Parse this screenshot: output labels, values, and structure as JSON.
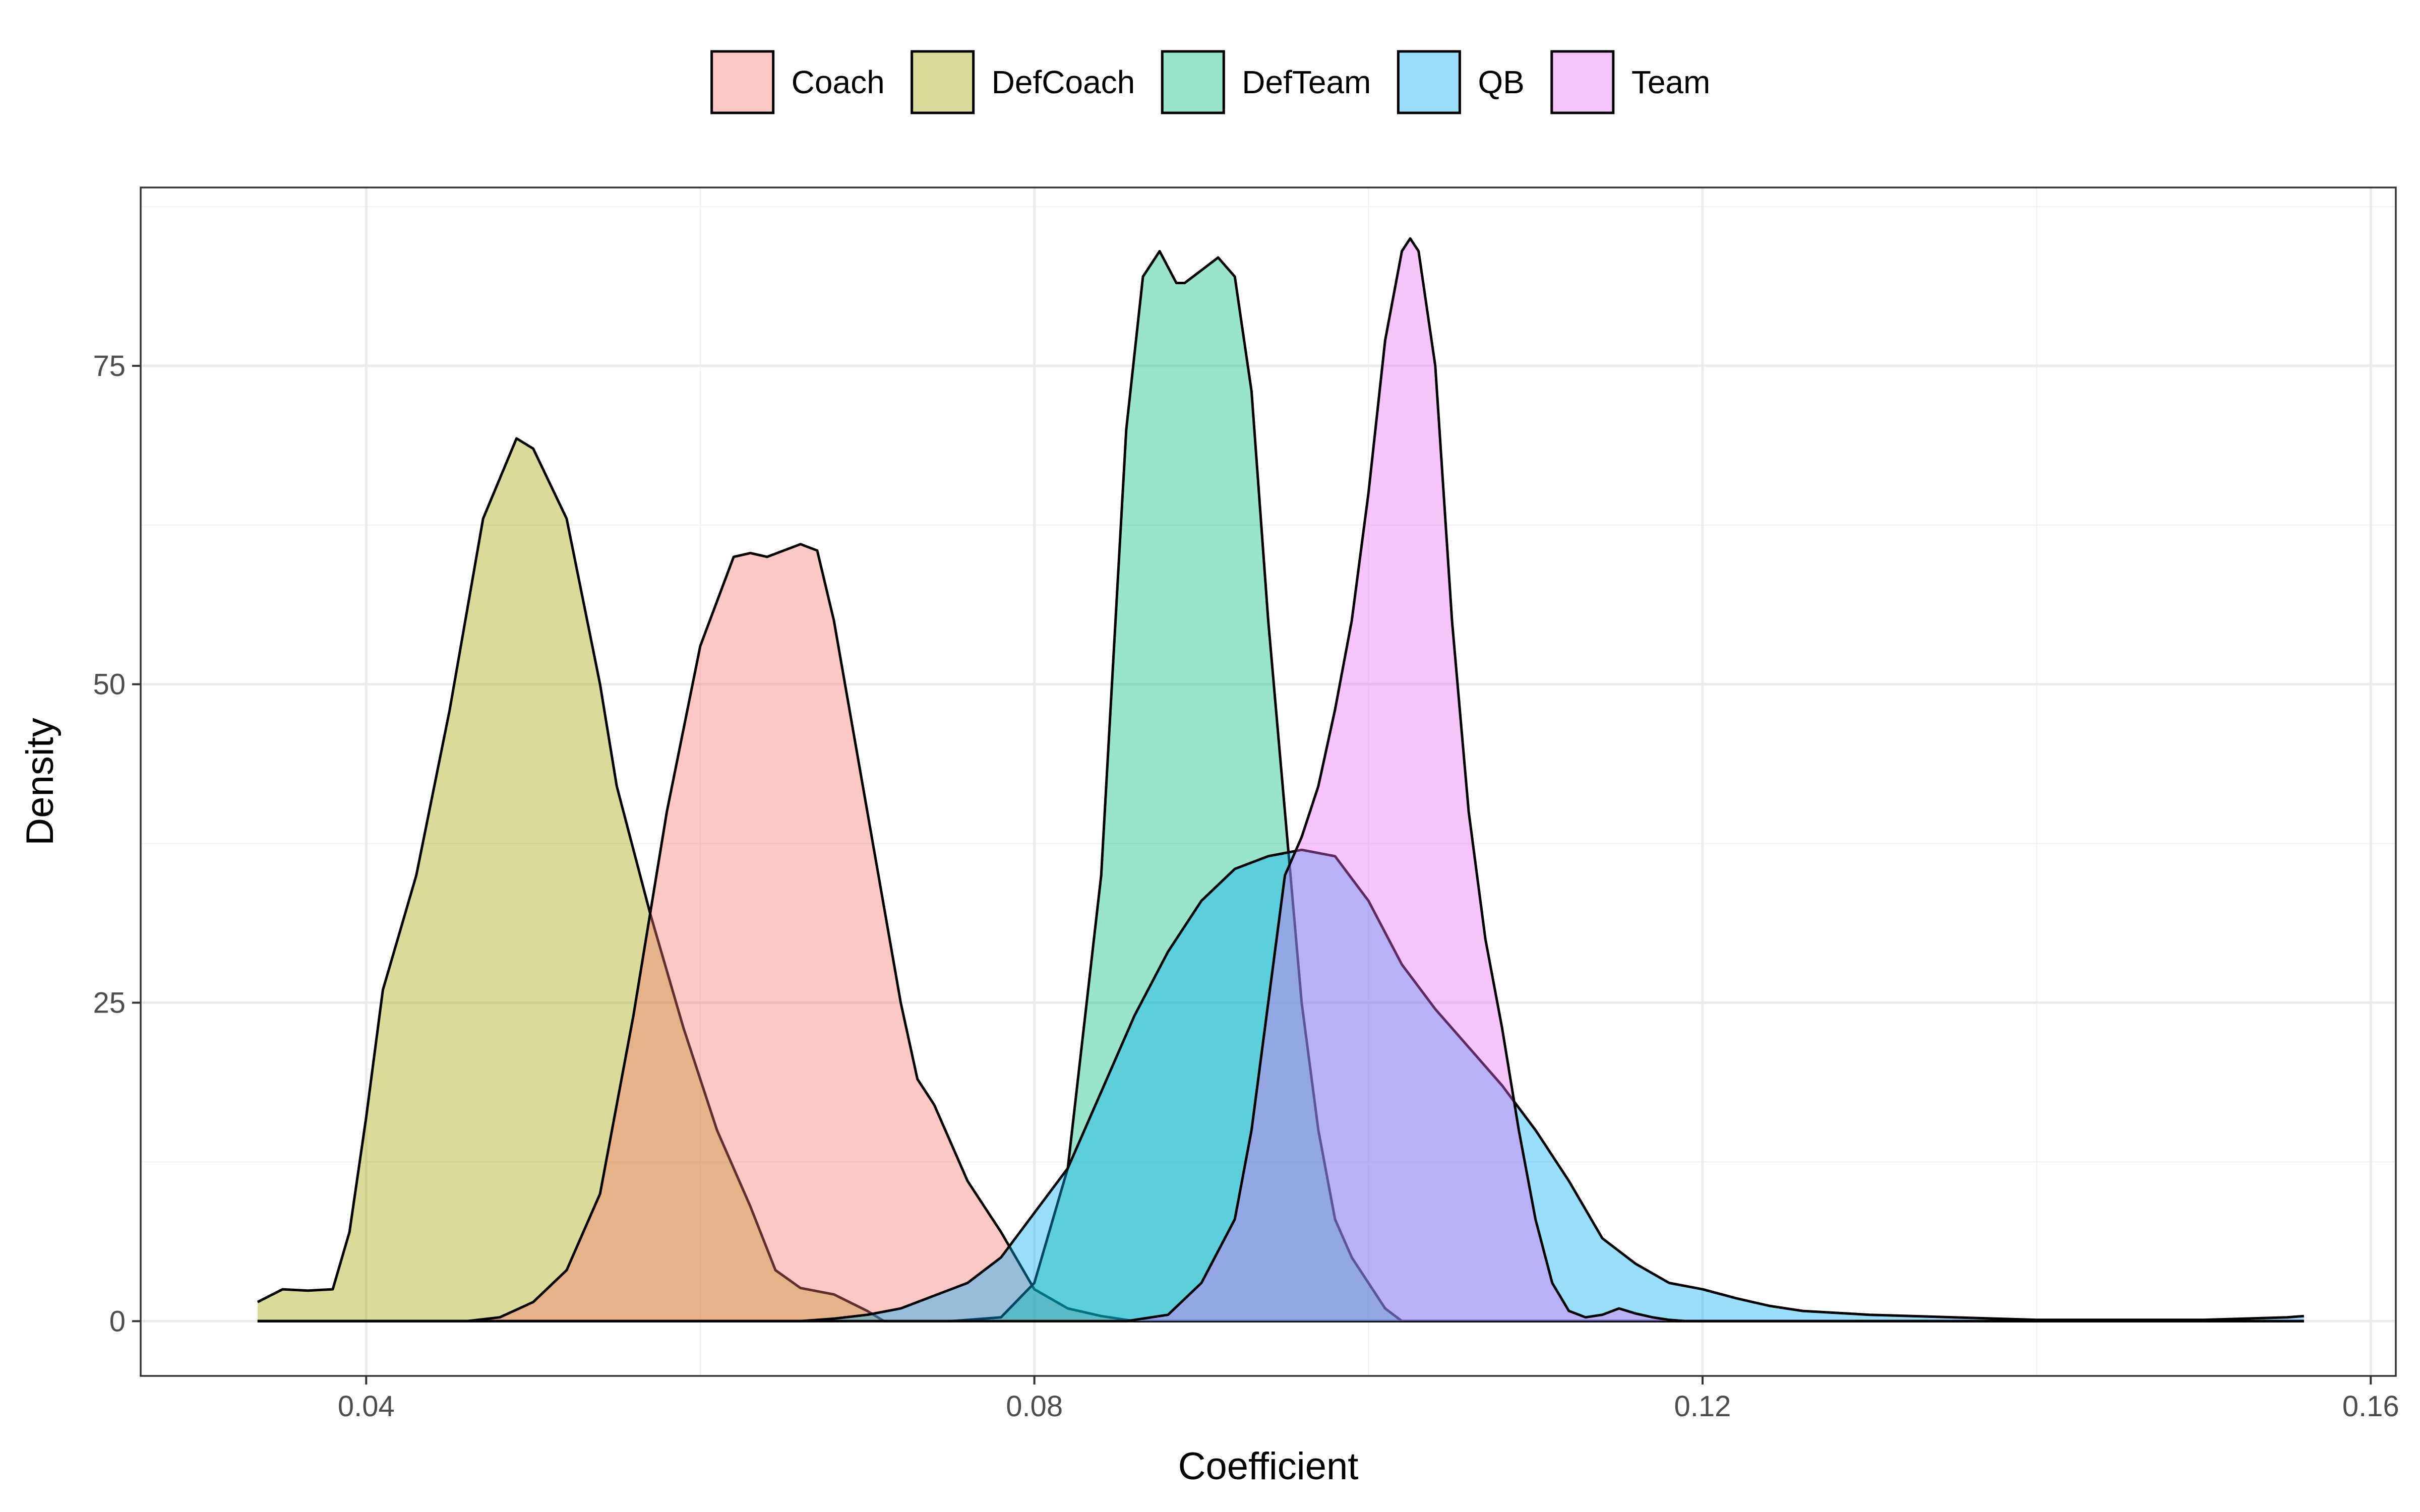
{
  "chart_data": {
    "type": "area",
    "title": "",
    "xlabel": "Coefficient",
    "ylabel": "Density",
    "xlim": [
      0.0265,
      0.1615
    ],
    "ylim": [
      -4.3,
      89
    ],
    "x_ticks": [
      0.04,
      0.08,
      0.12,
      0.16
    ],
    "x_tick_labels": [
      "0.04",
      "0.08",
      "0.12",
      "0.16"
    ],
    "y_ticks": [
      0,
      25,
      50,
      75
    ],
    "y_tick_labels": [
      "0",
      "25",
      "50",
      "75"
    ],
    "grid": true,
    "legend_position": "top",
    "fill_opacity": 0.4,
    "series": [
      {
        "name": "DefCoach",
        "color": "#A3A500",
        "points": [
          [
            0.0335,
            1.5
          ],
          [
            0.035,
            2.5
          ],
          [
            0.0365,
            2.4
          ],
          [
            0.038,
            2.5
          ],
          [
            0.039,
            7
          ],
          [
            0.04,
            16
          ],
          [
            0.041,
            26
          ],
          [
            0.043,
            35
          ],
          [
            0.045,
            48
          ],
          [
            0.047,
            63
          ],
          [
            0.049,
            69.3
          ],
          [
            0.05,
            68.5
          ],
          [
            0.052,
            63
          ],
          [
            0.054,
            50
          ],
          [
            0.055,
            42
          ],
          [
            0.057,
            32
          ],
          [
            0.059,
            23
          ],
          [
            0.061,
            15
          ],
          [
            0.063,
            9
          ],
          [
            0.0645,
            4
          ],
          [
            0.066,
            2.6
          ],
          [
            0.068,
            2.1
          ],
          [
            0.07,
            0.8
          ],
          [
            0.071,
            0
          ],
          [
            0.156,
            0
          ]
        ]
      },
      {
        "name": "Coach",
        "color": "#F8766D",
        "points": [
          [
            0.0335,
            0
          ],
          [
            0.046,
            0
          ],
          [
            0.048,
            0.3
          ],
          [
            0.05,
            1.5
          ],
          [
            0.052,
            4
          ],
          [
            0.054,
            10
          ],
          [
            0.056,
            24
          ],
          [
            0.058,
            40
          ],
          [
            0.06,
            53
          ],
          [
            0.062,
            60
          ],
          [
            0.063,
            60.3
          ],
          [
            0.064,
            60
          ],
          [
            0.065,
            60.5
          ],
          [
            0.066,
            61
          ],
          [
            0.067,
            60.5
          ],
          [
            0.068,
            55
          ],
          [
            0.07,
            40
          ],
          [
            0.072,
            25
          ],
          [
            0.073,
            19
          ],
          [
            0.074,
            17
          ],
          [
            0.075,
            14
          ],
          [
            0.076,
            11
          ],
          [
            0.078,
            7
          ],
          [
            0.08,
            2.5
          ],
          [
            0.082,
            1.0
          ],
          [
            0.084,
            0.4
          ],
          [
            0.086,
            0
          ],
          [
            0.156,
            0
          ]
        ]
      },
      {
        "name": "DefTeam",
        "color": "#00BF7D",
        "points": [
          [
            0.0335,
            0
          ],
          [
            0.071,
            0
          ],
          [
            0.075,
            0
          ],
          [
            0.078,
            0.3
          ],
          [
            0.08,
            3
          ],
          [
            0.082,
            12
          ],
          [
            0.084,
            35
          ],
          [
            0.0855,
            70
          ],
          [
            0.0865,
            82
          ],
          [
            0.0875,
            84
          ],
          [
            0.0885,
            81.5
          ],
          [
            0.089,
            81.5
          ],
          [
            0.0905,
            83
          ],
          [
            0.091,
            83.5
          ],
          [
            0.092,
            82
          ],
          [
            0.093,
            73
          ],
          [
            0.094,
            55
          ],
          [
            0.095,
            40
          ],
          [
            0.096,
            25
          ],
          [
            0.097,
            15
          ],
          [
            0.098,
            8
          ],
          [
            0.099,
            5
          ],
          [
            0.1,
            3
          ],
          [
            0.101,
            1
          ],
          [
            0.102,
            0
          ],
          [
            0.156,
            0
          ]
        ]
      },
      {
        "name": "QB",
        "color": "#00B0F6",
        "points": [
          [
            0.0335,
            0
          ],
          [
            0.066,
            0
          ],
          [
            0.068,
            0.2
          ],
          [
            0.07,
            0.5
          ],
          [
            0.072,
            1
          ],
          [
            0.074,
            2
          ],
          [
            0.076,
            3
          ],
          [
            0.078,
            5
          ],
          [
            0.08,
            8.5
          ],
          [
            0.082,
            12
          ],
          [
            0.084,
            18
          ],
          [
            0.086,
            24
          ],
          [
            0.088,
            29
          ],
          [
            0.09,
            33
          ],
          [
            0.092,
            35.5
          ],
          [
            0.094,
            36.5
          ],
          [
            0.096,
            37
          ],
          [
            0.098,
            36.5
          ],
          [
            0.1,
            33
          ],
          [
            0.102,
            28
          ],
          [
            0.104,
            24.5
          ],
          [
            0.106,
            21.5
          ],
          [
            0.108,
            18.5
          ],
          [
            0.11,
            15
          ],
          [
            0.112,
            11
          ],
          [
            0.114,
            6.5
          ],
          [
            0.116,
            4.5
          ],
          [
            0.118,
            3
          ],
          [
            0.12,
            2.5
          ],
          [
            0.122,
            1.8
          ],
          [
            0.124,
            1.2
          ],
          [
            0.126,
            0.8
          ],
          [
            0.13,
            0.5
          ],
          [
            0.135,
            0.3
          ],
          [
            0.14,
            0.1
          ],
          [
            0.145,
            0.1
          ],
          [
            0.15,
            0.1
          ],
          [
            0.155,
            0.3
          ],
          [
            0.156,
            0.4
          ]
        ]
      },
      {
        "name": "Team",
        "color": "#E76BF3",
        "points": [
          [
            0.0335,
            0
          ],
          [
            0.0855,
            0
          ],
          [
            0.088,
            0.5
          ],
          [
            0.09,
            3
          ],
          [
            0.092,
            8
          ],
          [
            0.093,
            15
          ],
          [
            0.094,
            25
          ],
          [
            0.095,
            35
          ],
          [
            0.096,
            38
          ],
          [
            0.097,
            42
          ],
          [
            0.098,
            48
          ],
          [
            0.099,
            55
          ],
          [
            0.1,
            65
          ],
          [
            0.101,
            77
          ],
          [
            0.102,
            84
          ],
          [
            0.1025,
            85
          ],
          [
            0.103,
            84
          ],
          [
            0.104,
            75
          ],
          [
            0.105,
            55
          ],
          [
            0.106,
            40
          ],
          [
            0.107,
            30
          ],
          [
            0.108,
            23
          ],
          [
            0.109,
            15
          ],
          [
            0.11,
            8
          ],
          [
            0.111,
            3
          ],
          [
            0.112,
            0.8
          ],
          [
            0.113,
            0.3
          ],
          [
            0.114,
            0.5
          ],
          [
            0.115,
            1.0
          ],
          [
            0.116,
            0.6
          ],
          [
            0.117,
            0.3
          ],
          [
            0.118,
            0.1
          ],
          [
            0.119,
            0
          ],
          [
            0.156,
            0
          ]
        ]
      }
    ],
    "legend_order": [
      "Coach",
      "DefCoach",
      "DefTeam",
      "QB",
      "Team"
    ]
  }
}
